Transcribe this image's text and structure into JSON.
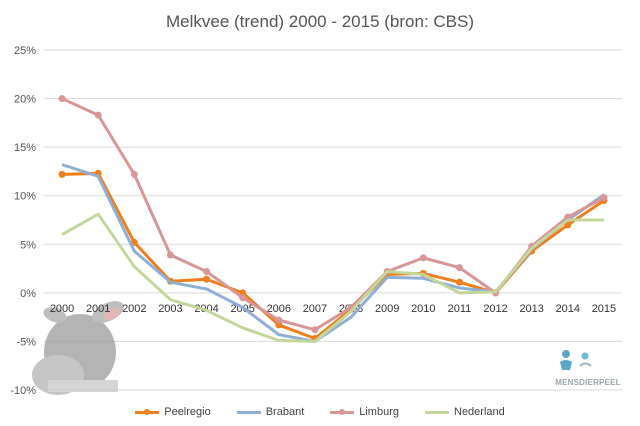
{
  "chart_data": {
    "type": "line",
    "title": "Melkvee (trend) 2000 - 2015 (bron: CBS)",
    "xlabel": "",
    "ylabel": "",
    "categories": [
      "2000",
      "2001",
      "2002",
      "2003",
      "2004",
      "2005",
      "2006",
      "2007",
      "2008",
      "2009",
      "2010",
      "2011",
      "2012",
      "2013",
      "2014",
      "2015"
    ],
    "ylim": [
      -10,
      25
    ],
    "yticks": [
      -10,
      -5,
      0,
      5,
      10,
      15,
      20,
      25
    ],
    "ytick_labels": [
      "-10%",
      "-5%",
      "0%",
      "5%",
      "10%",
      "15%",
      "20%",
      "25%"
    ],
    "grid": true,
    "legend_position": "bottom",
    "series": [
      {
        "name": "Peelregio",
        "color": "#f07e1b",
        "markers": true,
        "values": [
          12.2,
          12.3,
          5.2,
          1.2,
          1.4,
          0.0,
          -3.3,
          -4.7,
          -1.7,
          1.9,
          2.0,
          1.1,
          0.0,
          4.3,
          7.0,
          9.5
        ]
      },
      {
        "name": "Brabant",
        "color": "#8fafd6",
        "markers": false,
        "values": [
          13.2,
          12.0,
          4.3,
          1.1,
          0.4,
          -1.5,
          -4.3,
          -5.0,
          -2.5,
          1.6,
          1.5,
          0.5,
          0.1,
          4.5,
          7.5,
          10.1
        ]
      },
      {
        "name": "Limburg",
        "color": "#d99696",
        "markers": true,
        "values": [
          20.0,
          18.3,
          12.2,
          3.9,
          2.2,
          -0.5,
          -2.8,
          -3.8,
          -1.5,
          2.2,
          3.6,
          2.6,
          0.0,
          4.8,
          7.8,
          9.8
        ]
      },
      {
        "name": "Nederland",
        "color": "#c4d79b",
        "markers": false,
        "values": [
          6.0,
          8.1,
          2.7,
          -0.7,
          -1.8,
          -3.6,
          -4.9,
          -5.0,
          -1.9,
          2.2,
          1.9,
          0.0,
          0.1,
          4.6,
          7.5,
          7.5
        ]
      }
    ]
  },
  "watermark": {
    "text": "MENSDIERPEEL",
    "icon": "people-around-animal-logo"
  },
  "decoration": {
    "icon": "cow-photo"
  }
}
